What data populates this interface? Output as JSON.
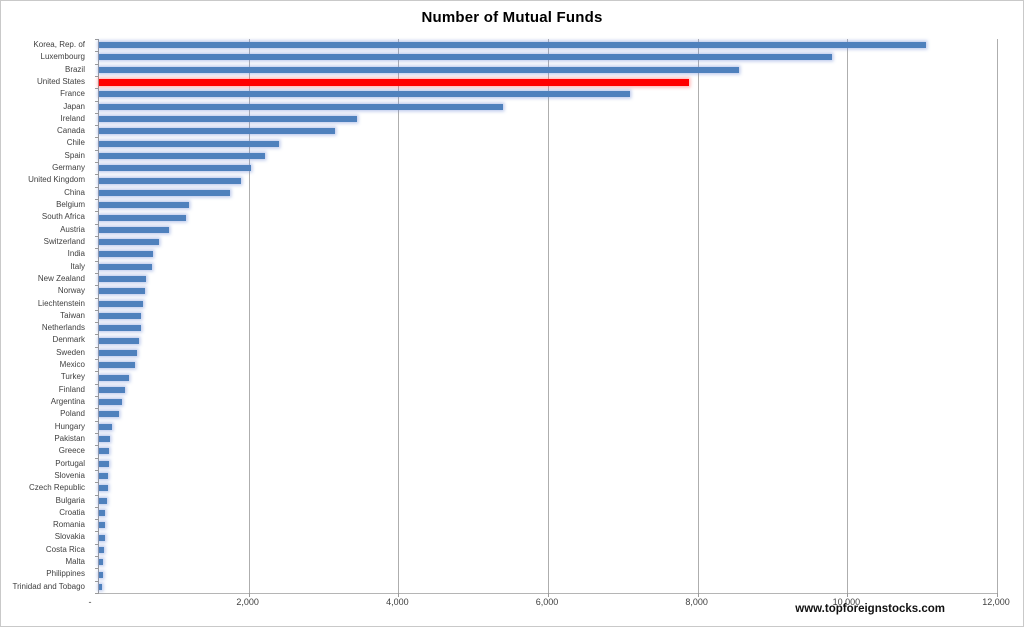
{
  "page": {
    "watermark": "www.topforeignstocks.com"
  },
  "chart_data": {
    "type": "bar",
    "orientation": "horizontal",
    "title": "Number of Mutual Funds",
    "categories": [
      "Korea, Rep. of",
      "Luxembourg",
      "Brazil",
      "United States",
      "France",
      "Japan",
      "Ireland",
      "Canada",
      "Chile",
      "Spain",
      "Germany",
      "United Kingdom",
      "China",
      "Belgium",
      "South Africa",
      "Austria",
      "Switzerland",
      "India",
      "Italy",
      "New Zealand",
      "Norway",
      "Liechtenstein",
      "Taiwan",
      "Netherlands",
      "Denmark",
      "Sweden",
      "Mexico",
      "Turkey",
      "Finland",
      "Argentina",
      "Poland",
      "Hungary",
      "Pakistan",
      "Greece",
      "Portugal",
      "Slovenia",
      "Czech Republic",
      "Bulgaria",
      "Croatia",
      "Romania",
      "Slovakia",
      "Costa Rica",
      "Malta",
      "Philippines",
      "Trinidad and Tobago"
    ],
    "values": [
      11050,
      9800,
      8550,
      7890,
      7100,
      5400,
      3450,
      3150,
      2400,
      2220,
      2030,
      1900,
      1750,
      1200,
      1160,
      940,
      800,
      720,
      710,
      630,
      615,
      590,
      565,
      560,
      540,
      510,
      480,
      400,
      350,
      310,
      270,
      180,
      150,
      140,
      130,
      120,
      115,
      110,
      85,
      80,
      75,
      72,
      60,
      55,
      45
    ],
    "highlight": {
      "category": "United States",
      "color": "#ff0000"
    },
    "bar_color": "#4f81bd",
    "xlabel": "",
    "ylabel": "",
    "xlim": [
      0,
      12000
    ],
    "x_ticks": [
      0,
      2000,
      4000,
      6000,
      8000,
      10000,
      12000
    ],
    "x_tick_labels": [
      "-",
      "2,000",
      "4,000",
      "6,000",
      "8,000",
      "10,000",
      "12,000"
    ],
    "grid": "vertical",
    "legend_position": "none"
  }
}
